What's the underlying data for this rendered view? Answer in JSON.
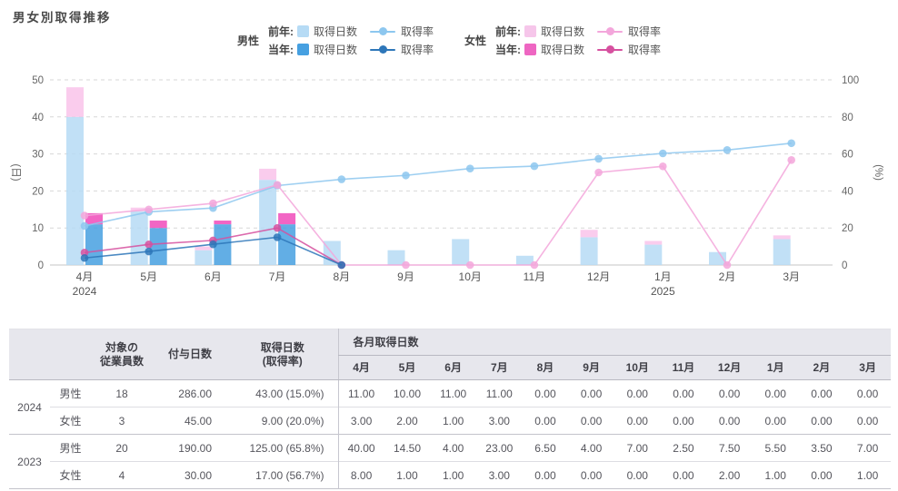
{
  "title": "男女別取得推移",
  "legend": {
    "groups": [
      {
        "label": "男性",
        "rows": [
          {
            "prefix": "前年:",
            "days_label": "取得日数",
            "rate_label": "取得率",
            "swatch_color": "#b6dbf5",
            "line_color": "#8dc7ef"
          },
          {
            "prefix": "当年:",
            "days_label": "取得日数",
            "rate_label": "取得率",
            "swatch_color": "#46a0e1",
            "line_color": "#2d76b9"
          }
        ]
      },
      {
        "label": "女性",
        "rows": [
          {
            "prefix": "前年:",
            "days_label": "取得日数",
            "rate_label": "取得率",
            "swatch_color": "#f6c6ea",
            "line_color": "#f3a6db"
          },
          {
            "prefix": "当年:",
            "days_label": "取得日数",
            "rate_label": "取得率",
            "swatch_color": "#ee66c2",
            "line_color": "#d6509f"
          }
        ]
      }
    ]
  },
  "chart_data": {
    "type": "bar+line",
    "title": "男女別取得推移",
    "categories": [
      "4月",
      "5月",
      "6月",
      "7月",
      "8月",
      "9月",
      "10月",
      "11月",
      "12月",
      "1月",
      "2月",
      "3月"
    ],
    "year_markers": [
      {
        "index": 0,
        "label": "2024"
      },
      {
        "index": 9,
        "label": "2025"
      }
    ],
    "left_axis": {
      "name": "(日)",
      "min": 0,
      "max": 50,
      "ticks": [
        0,
        10,
        20,
        30,
        40,
        50
      ]
    },
    "right_axis": {
      "name": "(%)",
      "min": 0,
      "max": 100,
      "ticks": [
        0,
        20,
        40,
        60,
        80,
        100
      ]
    },
    "bar_series": [
      {
        "name": "男性 前年 取得日数",
        "stack": "prev",
        "color": "#b6dbf5",
        "values": [
          40,
          14.5,
          4,
          23,
          6.5,
          4,
          7,
          2.5,
          7.5,
          5.5,
          3.5,
          7
        ]
      },
      {
        "name": "女性 前年 取得日数",
        "stack": "prev",
        "color": "#f9c6eb",
        "values": [
          8,
          1,
          1,
          3,
          0,
          0,
          0,
          0,
          2,
          1,
          0,
          1
        ]
      },
      {
        "name": "男性 当年 取得日数",
        "stack": "curr",
        "color": "#46a0e1",
        "values": [
          11,
          10,
          11,
          11,
          0,
          0,
          0,
          0,
          0,
          0,
          0,
          0
        ]
      },
      {
        "name": "女性 当年 取得日数",
        "stack": "curr",
        "color": "#f154be",
        "values": [
          3,
          2,
          1,
          3,
          0,
          0,
          0,
          0,
          0,
          0,
          0,
          0
        ]
      }
    ],
    "line_series": [
      {
        "name": "男性 前年 取得率",
        "color": "#8dc7ef",
        "values": [
          21.1,
          28.7,
          30.8,
          42.9,
          46.3,
          48.4,
          52.1,
          53.4,
          57.4,
          60.3,
          62.1,
          65.8
        ]
      },
      {
        "name": "女性 前年 取得率",
        "color": "#f3a6db",
        "values": [
          26.7,
          30.0,
          33.3,
          43.3,
          0,
          0,
          0,
          0,
          50.0,
          53.3,
          0,
          56.7
        ]
      },
      {
        "name": "女性 当年 取得率",
        "color": "#d6509f",
        "values": [
          6.7,
          11.1,
          13.3,
          20.0,
          0
        ]
      },
      {
        "name": "男性 当年 取得率",
        "color": "#2d76b9",
        "values": [
          3.8,
          7.3,
          11.2,
          15.0,
          0
        ]
      }
    ]
  },
  "table": {
    "group_header": "各月取得日数",
    "col_count": "対象の\n従業員数",
    "col_granted": "付与日数",
    "col_taken": "取得日数\n(取得率)",
    "months": [
      "4月",
      "5月",
      "6月",
      "7月",
      "8月",
      "9月",
      "10月",
      "11月",
      "12月",
      "1月",
      "2月",
      "3月"
    ],
    "groups": [
      {
        "year": "2024",
        "rows": [
          {
            "gender": "男性",
            "count": "18",
            "granted": "286.00",
            "taken": "43.00 (15.0%)",
            "monthly": [
              "11.00",
              "10.00",
              "11.00",
              "11.00",
              "0.00",
              "0.00",
              "0.00",
              "0.00",
              "0.00",
              "0.00",
              "0.00",
              "0.00"
            ]
          },
          {
            "gender": "女性",
            "count": "3",
            "granted": "45.00",
            "taken": "9.00 (20.0%)",
            "monthly": [
              "3.00",
              "2.00",
              "1.00",
              "3.00",
              "0.00",
              "0.00",
              "0.00",
              "0.00",
              "0.00",
              "0.00",
              "0.00",
              "0.00"
            ]
          }
        ]
      },
      {
        "year": "2023",
        "rows": [
          {
            "gender": "男性",
            "count": "20",
            "granted": "190.00",
            "taken": "125.00 (65.8%)",
            "monthly": [
              "40.00",
              "14.50",
              "4.00",
              "23.00",
              "6.50",
              "4.00",
              "7.00",
              "2.50",
              "7.50",
              "5.50",
              "3.50",
              "7.00"
            ]
          },
          {
            "gender": "女性",
            "count": "4",
            "granted": "30.00",
            "taken": "17.00 (56.7%)",
            "monthly": [
              "8.00",
              "1.00",
              "1.00",
              "3.00",
              "0.00",
              "0.00",
              "0.00",
              "0.00",
              "2.00",
              "1.00",
              "0.00",
              "1.00"
            ]
          }
        ]
      }
    ]
  }
}
